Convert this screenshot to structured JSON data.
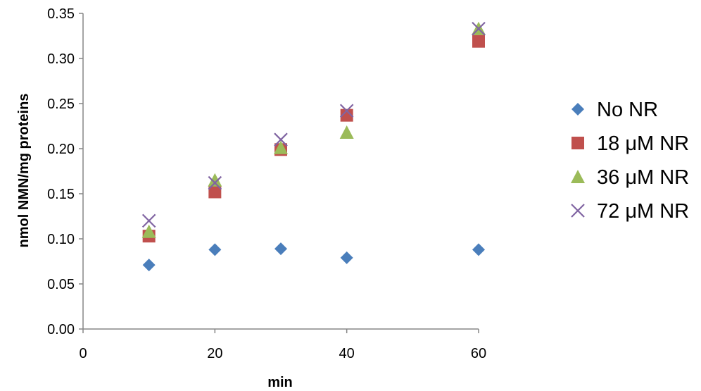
{
  "chart_data": {
    "type": "scatter",
    "title": "",
    "xlabel": "min",
    "ylabel": "nmol NMN/mg proteins",
    "xlim": [
      0,
      60
    ],
    "ylim": [
      0.0,
      0.35
    ],
    "x_ticks": [
      "0",
      "20",
      "40",
      "60"
    ],
    "y_ticks": [
      "0.00",
      "0.05",
      "0.10",
      "0.15",
      "0.20",
      "0.25",
      "0.30",
      "0.35"
    ],
    "grid": false,
    "legend_position": "right",
    "series": [
      {
        "name": "No NR",
        "marker": "diamond",
        "color": "#4a7ebb",
        "x": [
          10,
          20,
          30,
          40,
          60
        ],
        "y": [
          0.071,
          0.088,
          0.089,
          0.079,
          0.088
        ]
      },
      {
        "name": "18 μM NR",
        "marker": "square",
        "color": "#c0504d",
        "x": [
          10,
          20,
          30,
          40,
          60
        ],
        "y": [
          0.103,
          0.152,
          0.199,
          0.237,
          0.319
        ]
      },
      {
        "name": "36 μM NR",
        "marker": "triangle",
        "color": "#9bbb59",
        "x": [
          10,
          20,
          30,
          40,
          60
        ],
        "y": [
          0.108,
          0.165,
          0.201,
          0.218,
          0.333
        ]
      },
      {
        "name": "72 μM NR",
        "marker": "x",
        "color": "#8064a2",
        "x": [
          10,
          20,
          30,
          40,
          60
        ],
        "y": [
          0.12,
          0.162,
          0.21,
          0.242,
          0.333
        ]
      }
    ]
  }
}
